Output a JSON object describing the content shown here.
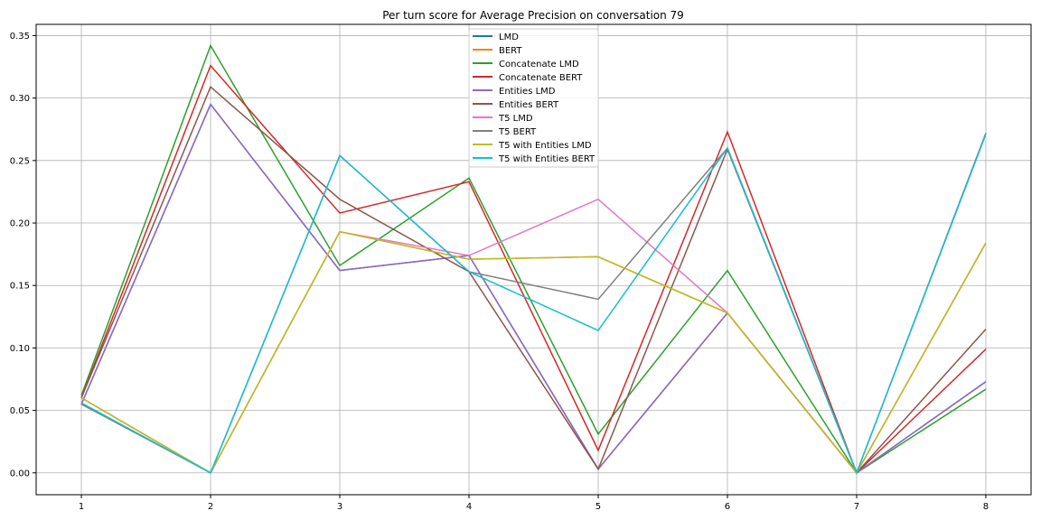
{
  "chart_data": {
    "type": "line",
    "title": "Per turn score for Average Precision on conversation 79",
    "xlabel": "",
    "ylabel": "",
    "x": [
      1,
      2,
      3,
      4,
      5,
      6,
      7,
      8
    ],
    "x_ticks": [
      "1",
      "2",
      "3",
      "4",
      "5",
      "6",
      "7",
      "8"
    ],
    "y_ticks": [
      "0.00",
      "0.05",
      "0.10",
      "0.15",
      "0.20",
      "0.25",
      "0.30",
      "0.35"
    ],
    "xlim": [
      0.65,
      8.35
    ],
    "ylim": [
      -0.0175,
      0.359
    ],
    "grid": true,
    "legend_position": "top-center",
    "series": [
      {
        "name": "LMD",
        "color": "#1f77b4",
        "values": [
          0.055,
          0.295,
          0.162,
          0.174,
          0.003,
          0.128,
          0.0,
          0.073
        ]
      },
      {
        "name": "BERT",
        "color": "#ff7f0e",
        "values": [
          0.06,
          0.0,
          0.193,
          0.171,
          0.173,
          0.128,
          0.0,
          0.184
        ]
      },
      {
        "name": "Concatenate LMD",
        "color": "#2ca02c",
        "values": [
          0.062,
          0.342,
          0.166,
          0.236,
          0.031,
          0.162,
          0.0,
          0.067
        ]
      },
      {
        "name": "Concatenate BERT",
        "color": "#d62728",
        "values": [
          0.06,
          0.326,
          0.208,
          0.233,
          0.018,
          0.273,
          0.0,
          0.099
        ]
      },
      {
        "name": "Entities LMD",
        "color": "#9467bd",
        "values": [
          0.055,
          0.295,
          0.162,
          0.174,
          0.003,
          0.128,
          0.0,
          0.073
        ]
      },
      {
        "name": "Entities BERT",
        "color": "#8c564b",
        "values": [
          0.06,
          0.309,
          0.219,
          0.161,
          0.003,
          0.259,
          0.0,
          0.115
        ]
      },
      {
        "name": "T5 LMD",
        "color": "#e377c2",
        "values": [
          0.06,
          0.0,
          0.193,
          0.174,
          0.219,
          0.128,
          0.0,
          0.184
        ]
      },
      {
        "name": "T5 BERT",
        "color": "#7f7f7f",
        "values": [
          0.055,
          0.0,
          0.254,
          0.161,
          0.139,
          0.26,
          0.0,
          0.272
        ]
      },
      {
        "name": "T5 with Entities LMD",
        "color": "#bcbd22",
        "values": [
          0.06,
          0.0,
          0.193,
          0.171,
          0.173,
          0.128,
          0.0,
          0.184
        ]
      },
      {
        "name": "T5 with Entities BERT",
        "color": "#17becf",
        "values": [
          0.056,
          0.0,
          0.254,
          0.161,
          0.114,
          0.26,
          0.0,
          0.271
        ]
      }
    ]
  }
}
